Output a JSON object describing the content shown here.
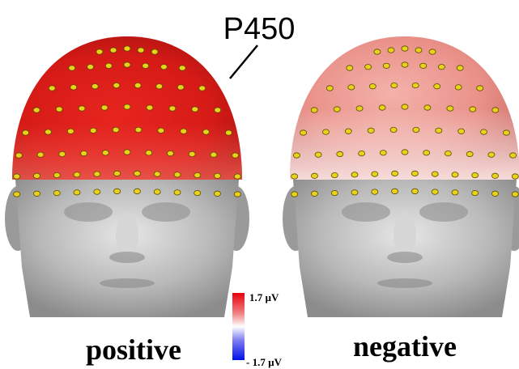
{
  "figure": {
    "title": "P450",
    "colorbar": {
      "max_label": "1.7 µV",
      "min_label": "- 1.7 µV"
    },
    "heads": [
      {
        "label": "positive"
      },
      {
        "label": "negative"
      }
    ]
  }
}
